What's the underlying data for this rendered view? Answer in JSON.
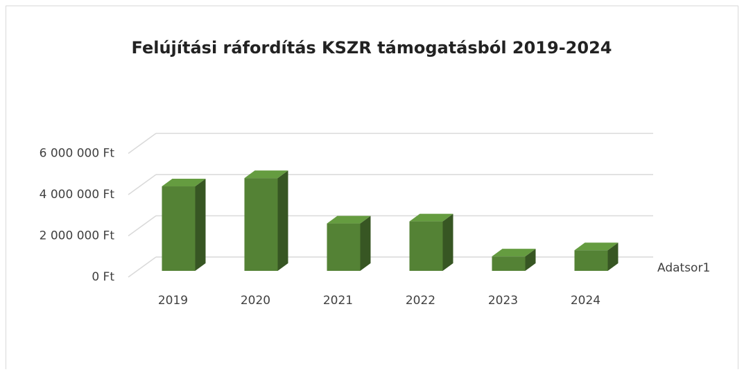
{
  "chart_data": {
    "type": "bar3d",
    "title": "Felújítási ráfordítás KSZR támogatásból 2019-2024",
    "categories": [
      "2019",
      "2020",
      "2021",
      "2022",
      "2023",
      "2024"
    ],
    "series": [
      {
        "name": "Adatsor1",
        "color": "#548235",
        "values": [
          4100000,
          4500000,
          2300000,
          2400000,
          700000,
          1000000
        ]
      }
    ],
    "ylim": [
      0,
      6000000
    ],
    "yticks": [
      {
        "value": 0,
        "label": "0 Ft"
      },
      {
        "value": 2000000,
        "label": "2 000 000 Ft"
      },
      {
        "value": 4000000,
        "label": "4 000 000 Ft"
      },
      {
        "value": 6000000,
        "label": "6 000 000 Ft"
      }
    ],
    "grid": true,
    "legend": "right"
  }
}
